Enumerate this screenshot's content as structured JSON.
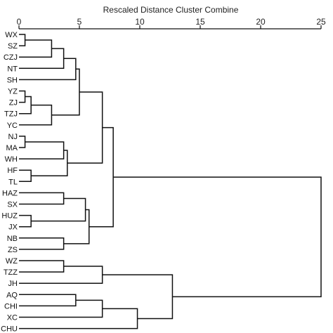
{
  "chart_data": {
    "type": "dendrogram",
    "title": "Rescaled Distance Cluster Combine",
    "xticks": [
      0,
      5,
      10,
      15,
      20,
      25
    ],
    "xlim": [
      0,
      25
    ],
    "leaves": [
      "WX",
      "SZ",
      "CZJ",
      "NT",
      "SH",
      "YZ",
      "ZJ",
      "TZJ",
      "YC",
      "NJ",
      "MA",
      "WH",
      "HF",
      "TL",
      "HAZ",
      "SX",
      "HUZ",
      "JX",
      "NB",
      "ZS",
      "WZ",
      "TZZ",
      "JH",
      "AQ",
      "CHI",
      "XC",
      "CHU"
    ],
    "merges": [
      {
        "a": "L0",
        "b": "L1",
        "dist": 0.5
      },
      {
        "a": "M0",
        "b": "L2",
        "dist": 2.7
      },
      {
        "a": "M1",
        "b": "L3",
        "dist": 3.7
      },
      {
        "a": "M2",
        "b": "L4",
        "dist": 4.7
      },
      {
        "a": "L5",
        "b": "L6",
        "dist": 0.5
      },
      {
        "a": "M4",
        "b": "L7",
        "dist": 1.0
      },
      {
        "a": "M5",
        "b": "L8",
        "dist": 2.7
      },
      {
        "a": "M3",
        "b": "M6",
        "dist": 5.0
      },
      {
        "a": "L9",
        "b": "L10",
        "dist": 0.5
      },
      {
        "a": "M8",
        "b": "L11",
        "dist": 3.7
      },
      {
        "a": "L12",
        "b": "L13",
        "dist": 1.0
      },
      {
        "a": "M9",
        "b": "M10",
        "dist": 4.0
      },
      {
        "a": "M7",
        "b": "M11",
        "dist": 6.9
      },
      {
        "a": "L14",
        "b": "L15",
        "dist": 3.7
      },
      {
        "a": "L16",
        "b": "L17",
        "dist": 1.0
      },
      {
        "a": "M13",
        "b": "M14",
        "dist": 5.5
      },
      {
        "a": "L18",
        "b": "L19",
        "dist": 3.7
      },
      {
        "a": "M15",
        "b": "M16",
        "dist": 5.8
      },
      {
        "a": "M12",
        "b": "M17",
        "dist": 7.8
      },
      {
        "a": "L20",
        "b": "L21",
        "dist": 3.7
      },
      {
        "a": "M19",
        "b": "L22",
        "dist": 6.9
      },
      {
        "a": "L23",
        "b": "L24",
        "dist": 4.7
      },
      {
        "a": "M21",
        "b": "L25",
        "dist": 6.9
      },
      {
        "a": "M22",
        "b": "L26",
        "dist": 9.8
      },
      {
        "a": "M20",
        "b": "M23",
        "dist": 12.7
      },
      {
        "a": "M18",
        "b": "M24",
        "dist": 25.0
      }
    ]
  }
}
